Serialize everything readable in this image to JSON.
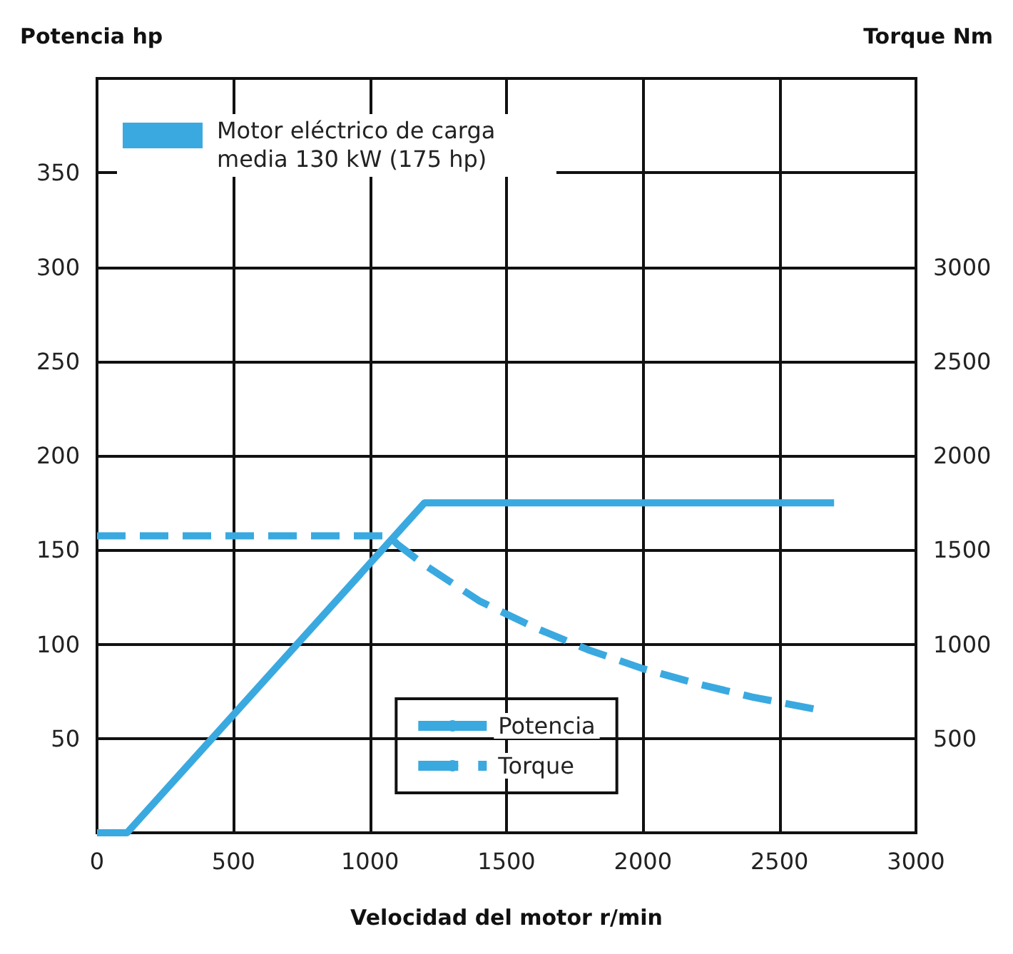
{
  "chart_data": {
    "type": "line",
    "xlabel": "Velocidad del motor r/min",
    "ylabel": "Potencia hp",
    "y2label": "Torque Nm",
    "annotations": [
      "Motor eléctrico de carga\nmedia 130 kW (175 hp)"
    ],
    "xlim": [
      0,
      3000
    ],
    "xticks": [
      0,
      500,
      1000,
      1500,
      2000,
      2500,
      3000
    ],
    "ylim": [
      0,
      400
    ],
    "yticks": [
      50,
      100,
      150,
      200,
      250,
      300,
      350
    ],
    "y2lim": [
      0,
      4000
    ],
    "y2ticks": [
      500,
      1000,
      1500,
      2000,
      2500,
      3000
    ],
    "grid": true,
    "legend": "bottom",
    "marker": "none",
    "series": [
      {
        "name": "Potencia",
        "color": "#3aa9e0",
        "line_style": "solid",
        "x": [
          0,
          110,
          1200,
          2700
        ],
        "values": [
          0,
          0,
          175,
          175
        ]
      },
      {
        "name": "Torque",
        "color": "#3aa9e0",
        "line_style": "dashed",
        "axis": "y2",
        "x": [
          0,
          1070,
          1100,
          1200,
          1400,
          1600,
          1800,
          2000,
          2200,
          2400,
          2650
        ],
        "values": [
          1575,
          1575,
          1530,
          1420,
          1230,
          1090,
          970,
          870,
          790,
          720,
          650
        ]
      }
    ]
  }
}
